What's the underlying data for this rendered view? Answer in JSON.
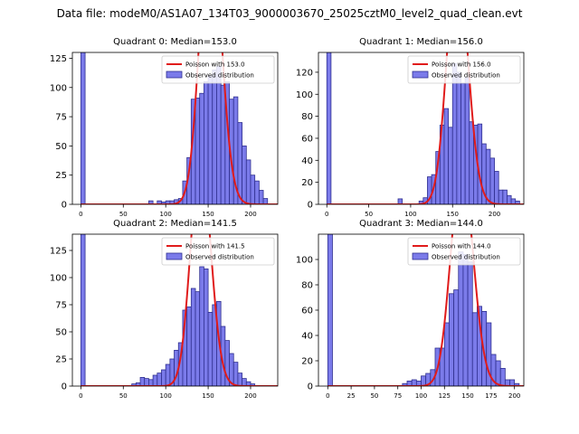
{
  "suptitle": "Data file: modeM0/AS1A07_134T03_9000003670_25025cztM0_level2_quad_clean.evt",
  "chart_data": [
    {
      "type": "bar",
      "title": "Quadrant 0: Median=153.0",
      "legend": [
        "Poisson with 153.0",
        "Observed distribution"
      ],
      "mean": 153.0,
      "xlim": [
        -10,
        232
      ],
      "ylim": [
        0,
        130
      ],
      "xticks": [
        0,
        50,
        100,
        150,
        200
      ],
      "yticks": [
        0,
        25,
        50,
        75,
        100,
        125
      ],
      "bin_width": 5,
      "bins": [
        [
          0,
          130
        ],
        [
          80,
          3
        ],
        [
          90,
          3
        ],
        [
          95,
          2
        ],
        [
          100,
          3
        ],
        [
          105,
          3
        ],
        [
          110,
          4
        ],
        [
          115,
          5
        ],
        [
          120,
          20
        ],
        [
          125,
          40
        ],
        [
          130,
          90
        ],
        [
          135,
          91
        ],
        [
          140,
          95
        ],
        [
          145,
          105
        ],
        [
          150,
          110
        ],
        [
          155,
          115
        ],
        [
          160,
          118
        ],
        [
          165,
          102
        ],
        [
          170,
          105
        ],
        [
          175,
          90
        ],
        [
          180,
          92
        ],
        [
          185,
          70
        ],
        [
          190,
          50
        ],
        [
          195,
          38
        ],
        [
          200,
          25
        ],
        [
          205,
          20
        ],
        [
          210,
          12
        ],
        [
          215,
          5
        ]
      ]
    },
    {
      "type": "bar",
      "title": "Quadrant 1: Median=156.0",
      "legend": [
        "Poisson with 156.0",
        "Observed distribution"
      ],
      "mean": 156.0,
      "xlim": [
        -10,
        235
      ],
      "ylim": [
        0,
        138
      ],
      "xticks": [
        0,
        50,
        100,
        150,
        200
      ],
      "yticks": [
        0,
        20,
        40,
        60,
        80,
        100,
        120
      ],
      "bin_width": 5,
      "bins": [
        [
          0,
          138
        ],
        [
          85,
          5
        ],
        [
          110,
          3
        ],
        [
          115,
          6
        ],
        [
          120,
          25
        ],
        [
          125,
          27
        ],
        [
          130,
          48
        ],
        [
          135,
          72
        ],
        [
          140,
          87
        ],
        [
          145,
          70
        ],
        [
          150,
          128
        ],
        [
          155,
          120
        ],
        [
          160,
          110
        ],
        [
          165,
          115
        ],
        [
          170,
          75
        ],
        [
          175,
          72
        ],
        [
          180,
          73
        ],
        [
          185,
          55
        ],
        [
          190,
          50
        ],
        [
          195,
          42
        ],
        [
          200,
          30
        ],
        [
          205,
          13
        ],
        [
          210,
          13
        ],
        [
          215,
          8
        ],
        [
          220,
          5
        ],
        [
          225,
          3
        ]
      ]
    },
    {
      "type": "bar",
      "title": "Quadrant 2: Median=141.5",
      "legend": [
        "Poisson with 141.5",
        "Observed distribution"
      ],
      "mean": 141.5,
      "xlim": [
        -10,
        232
      ],
      "ylim": [
        0,
        140
      ],
      "xticks": [
        0,
        50,
        100,
        150,
        200
      ],
      "yticks": [
        0,
        25,
        50,
        75,
        100,
        125
      ],
      "bin_width": 5,
      "bins": [
        [
          0,
          140
        ],
        [
          60,
          2
        ],
        [
          65,
          3
        ],
        [
          70,
          8
        ],
        [
          75,
          7
        ],
        [
          80,
          6
        ],
        [
          85,
          10
        ],
        [
          90,
          12
        ],
        [
          95,
          15
        ],
        [
          100,
          20
        ],
        [
          105,
          25
        ],
        [
          110,
          33
        ],
        [
          115,
          40
        ],
        [
          120,
          70
        ],
        [
          125,
          73
        ],
        [
          130,
          90
        ],
        [
          135,
          87
        ],
        [
          140,
          110
        ],
        [
          145,
          108
        ],
        [
          150,
          68
        ],
        [
          155,
          75
        ],
        [
          160,
          78
        ],
        [
          165,
          55
        ],
        [
          170,
          42
        ],
        [
          175,
          30
        ],
        [
          180,
          22
        ],
        [
          185,
          12
        ],
        [
          190,
          7
        ],
        [
          195,
          4
        ],
        [
          200,
          2
        ]
      ]
    },
    {
      "type": "bar",
      "title": "Quadrant 3: Median=144.0",
      "legend": [
        "Poisson with 144.0",
        "Observed distribution"
      ],
      "mean": 144.0,
      "xlim": [
        -10,
        210
      ],
      "ylim": [
        0,
        120
      ],
      "xticks": [
        0,
        25,
        50,
        75,
        100,
        125,
        150,
        175,
        200
      ],
      "yticks": [
        0,
        20,
        40,
        60,
        80,
        100
      ],
      "bin_width": 5,
      "bins": [
        [
          0,
          120
        ],
        [
          80,
          2
        ],
        [
          85,
          4
        ],
        [
          90,
          5
        ],
        [
          95,
          4
        ],
        [
          100,
          8
        ],
        [
          105,
          10
        ],
        [
          110,
          13
        ],
        [
          115,
          30
        ],
        [
          120,
          30
        ],
        [
          125,
          50
        ],
        [
          130,
          73
        ],
        [
          135,
          76
        ],
        [
          140,
          106
        ],
        [
          145,
          104
        ],
        [
          150,
          98
        ],
        [
          155,
          58
        ],
        [
          160,
          63
        ],
        [
          165,
          59
        ],
        [
          170,
          50
        ],
        [
          175,
          25
        ],
        [
          180,
          20
        ],
        [
          185,
          14
        ],
        [
          190,
          5
        ],
        [
          195,
          5
        ],
        [
          200,
          2
        ]
      ]
    }
  ]
}
